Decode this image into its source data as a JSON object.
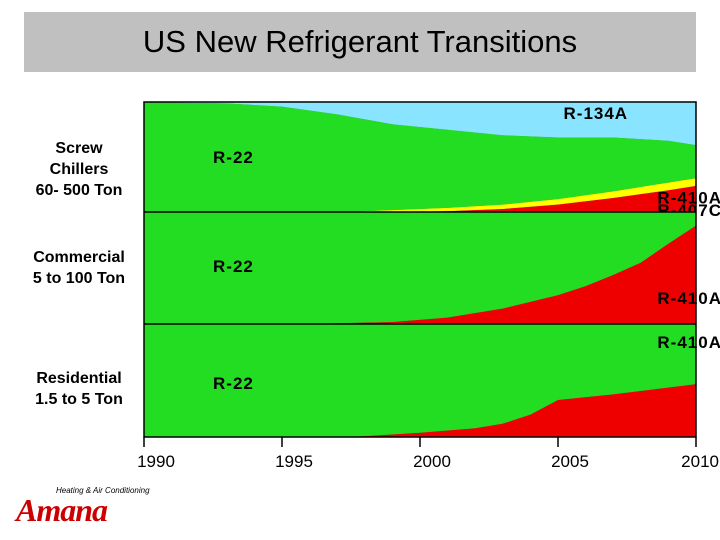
{
  "title": "US New Refrigerant Transitions",
  "segments": [
    {
      "label_lines": [
        "Screw",
        "Chillers",
        "60- 500 Ton"
      ]
    },
    {
      "label_lines": [
        "Commercial",
        "5 to 100 Ton"
      ]
    },
    {
      "label_lines": [
        "Residential",
        "1.5 to 5 Ton"
      ]
    }
  ],
  "logo": {
    "word": "Amana",
    "tagline": "Heating & Air Conditioning"
  },
  "colors": {
    "r22": "#22dd22",
    "r134a": "#88e4ff",
    "r410a": "#ee0000",
    "r407c": "#ffff00"
  },
  "chart_data": {
    "type": "area",
    "x_ticks": [
      "1990",
      "1995",
      "2000",
      "2005",
      "2010"
    ],
    "xlim": [
      1990,
      2010
    ],
    "panels": [
      {
        "name": "Screw Chillers 60- 500 Ton",
        "x": [
          1990,
          1993,
          1995,
          1997,
          1999,
          2001,
          2003,
          2005,
          2007,
          2009,
          2010
        ],
        "series": [
          {
            "name": "R-410A",
            "color": "#ee0000",
            "values": [
              0,
              0,
              0,
              0,
              0,
              1,
              3,
              7,
              13,
              20,
              24
            ]
          },
          {
            "name": "R-407C",
            "color": "#ffff00",
            "values": [
              0,
              0,
              0,
              0,
              2,
              3,
              4,
              5,
              6,
              7,
              7
            ]
          },
          {
            "name": "R-22",
            "color": "#22dd22",
            "values": [
              100,
              99,
              96,
              89,
              78,
              71,
              63,
              56,
              49,
              38,
              30
            ]
          },
          {
            "name": "R-134A",
            "color": "#88e4ff",
            "values": [
              0,
              1,
              4,
              11,
              20,
              25,
              30,
              32,
              32,
              35,
              39
            ]
          }
        ],
        "labels": [
          {
            "text": "R-134A",
            "x": 2005.2,
            "y": 90
          },
          {
            "text": "R-22",
            "x": 1992.5,
            "y": 50
          },
          {
            "text": "R-410A",
            "x": 2008.6,
            "y": 13
          },
          {
            "text": "R-407C",
            "x": 2008.6,
            "y": 2
          }
        ]
      },
      {
        "name": "Commercial 5 to 100 Ton",
        "x": [
          1990,
          1993,
          1995,
          1997,
          1999,
          2001,
          2003,
          2005,
          2006,
          2007,
          2008,
          2009,
          2010
        ],
        "series": [
          {
            "name": "R-410A",
            "color": "#ee0000",
            "values": [
              0,
              0,
              0,
              1,
              2,
              6,
              14,
              26,
              34,
              44,
              55,
              72,
              88
            ]
          },
          {
            "name": "R-22",
            "color": "#22dd22",
            "values": [
              100,
              100,
              100,
              99,
              98,
              94,
              86,
              74,
              66,
              56,
              45,
              28,
              12
            ]
          }
        ],
        "labels": [
          {
            "text": "R-22",
            "x": 1992.5,
            "y": 52
          },
          {
            "text": "R-410A",
            "x": 2008.6,
            "y": 23
          }
        ]
      },
      {
        "name": "Residential 1.5 to 5 Ton",
        "x": [
          1990,
          1993,
          1995,
          1997,
          1998,
          2000,
          2002,
          2003,
          2004,
          2005,
          2007,
          2009,
          2010
        ],
        "series": [
          {
            "name": "R-410A",
            "color": "#ee0000",
            "values": [
              0,
              0,
              0,
              0,
              1,
              4,
              8,
              12,
              20,
              33,
              38,
              44,
              47
            ]
          },
          {
            "name": "R-22",
            "color": "#22dd22",
            "values": [
              100,
              100,
              100,
              100,
              99,
              96,
              92,
              88,
              80,
              67,
              62,
              56,
              53
            ]
          }
        ],
        "labels": [
          {
            "text": "R-410A",
            "x": 2008.6,
            "y": 84
          },
          {
            "text": "R-22",
            "x": 1992.5,
            "y": 48
          }
        ]
      }
    ]
  }
}
